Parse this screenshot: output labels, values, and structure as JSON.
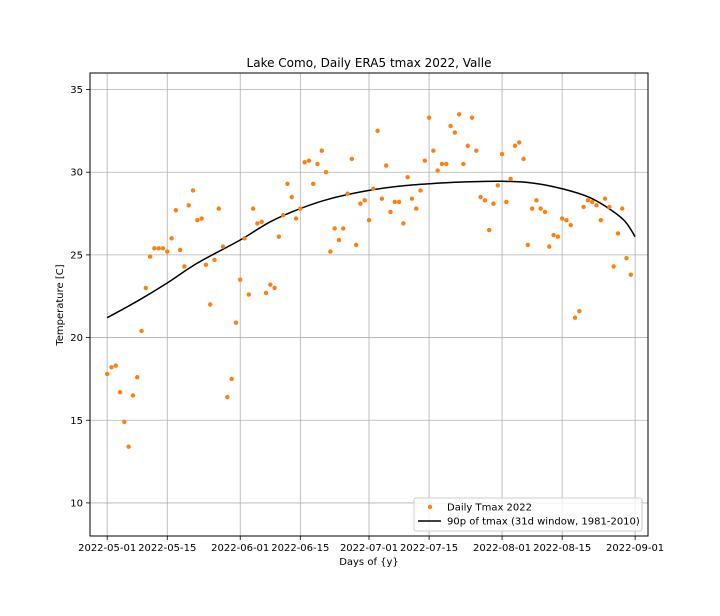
{
  "chart_data": {
    "type": "scatter",
    "title": "Lake Como, Daily ERA5 tmax 2022, Valle",
    "xlabel": "Days of {y}",
    "ylabel": "Temperature [C]",
    "xlim": [
      "2022-04-27",
      "2022-09-04"
    ],
    "ylim": [
      8,
      36
    ],
    "x_ticks": [
      "2022-05-01",
      "2022-05-15",
      "2022-06-01",
      "2022-06-15",
      "2022-07-01",
      "2022-07-15",
      "2022-08-01",
      "2022-08-15",
      "2022-09-01"
    ],
    "y_ticks": [
      10,
      15,
      20,
      25,
      30,
      35
    ],
    "grid": true,
    "legend_position": "lower right",
    "series": [
      {
        "name": "Daily Tmax 2022",
        "kind": "points",
        "color": "#ff7f0e",
        "start": "2022-05-01",
        "values": [
          17.8,
          18.2,
          18.3,
          16.7,
          14.9,
          13.4,
          16.5,
          17.6,
          20.4,
          23.0,
          24.9,
          25.4,
          25.4,
          25.4,
          25.2,
          26.0,
          27.7,
          25.3,
          24.3,
          28.0,
          28.9,
          27.1,
          27.2,
          24.4,
          22.0,
          24.7,
          27.8,
          25.5,
          16.4,
          17.5,
          20.9,
          23.5,
          26.0,
          22.6,
          27.8,
          26.9,
          27.0,
          22.7,
          23.2,
          23.0,
          26.1,
          27.4,
          29.3,
          28.5,
          27.2,
          27.8,
          30.6,
          30.7,
          29.3,
          30.5,
          31.3,
          30.0,
          25.2,
          26.6,
          25.9,
          26.6,
          28.7,
          30.8,
          25.6,
          28.1,
          28.3,
          27.1,
          29.0,
          32.5,
          28.4,
          30.4,
          27.6,
          28.2,
          28.2,
          26.9,
          29.7,
          28.4,
          27.8,
          28.9,
          30.7,
          33.3,
          31.3,
          30.1,
          30.5,
          30.5,
          32.8,
          32.4,
          33.5,
          30.5,
          31.6,
          33.3,
          31.3,
          28.5,
          28.3,
          26.5,
          28.1,
          29.2,
          31.1,
          28.2,
          29.6,
          31.6,
          31.8,
          30.8,
          25.6,
          27.8,
          28.3,
          27.8,
          27.6,
          25.5,
          26.2,
          26.1,
          27.2,
          27.1,
          26.8,
          21.2,
          21.6,
          27.9,
          28.3,
          28.2,
          28.0,
          27.1,
          28.4,
          27.9,
          24.3,
          26.3,
          27.8,
          24.8,
          23.8
        ]
      },
      {
        "name": "90p of tmax (31d window, 1981-2010)",
        "kind": "line",
        "color": "#000000",
        "x": [
          "2022-05-01",
          "2022-05-08",
          "2022-05-15",
          "2022-05-22",
          "2022-06-01",
          "2022-06-08",
          "2022-06-15",
          "2022-06-22",
          "2022-07-01",
          "2022-07-08",
          "2022-07-15",
          "2022-07-22",
          "2022-08-01",
          "2022-08-08",
          "2022-08-15",
          "2022-08-22",
          "2022-08-29",
          "2022-09-01"
        ],
        "values": [
          21.2,
          22.2,
          23.3,
          24.5,
          25.9,
          27.0,
          27.8,
          28.4,
          28.9,
          29.15,
          29.3,
          29.4,
          29.45,
          29.35,
          29.0,
          28.4,
          27.2,
          26.1
        ]
      }
    ]
  }
}
